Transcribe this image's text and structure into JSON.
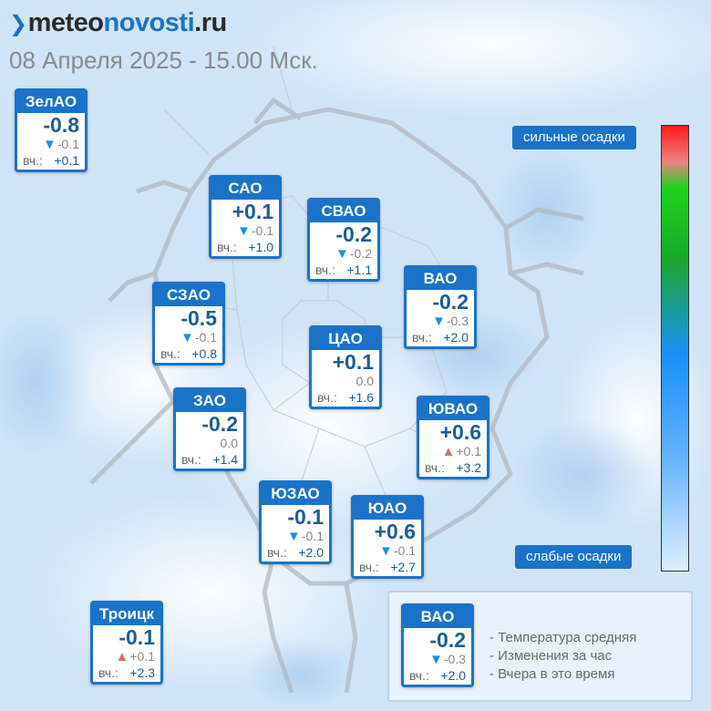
{
  "brand": {
    "meteo": "meteo",
    "novosti": "novosti",
    "ru": ".ru"
  },
  "date_line": "08 Апреля 2025 - 15.00 Мск.",
  "yest_label": "вч.:",
  "districts": [
    {
      "name": "ЗелАО",
      "temp": "-0.8",
      "change": "-0.1",
      "trend": "down",
      "yesterday": "+0.1"
    },
    {
      "name": "САО",
      "temp": "+0.1",
      "change": "-0.1",
      "trend": "down",
      "yesterday": "+1.0"
    },
    {
      "name": "СВАО",
      "temp": "-0.2",
      "change": "-0.2",
      "trend": "down",
      "yesterday": "+1.1"
    },
    {
      "name": "ВАО",
      "temp": "-0.2",
      "change": "-0.3",
      "trend": "down",
      "yesterday": "+2.0"
    },
    {
      "name": "СЗАО",
      "temp": "-0.5",
      "change": "-0.1",
      "trend": "down",
      "yesterday": "+0.8"
    },
    {
      "name": "ЦАО",
      "temp": "+0.1",
      "change": "0.0",
      "trend": "none",
      "yesterday": "+1.6"
    },
    {
      "name": "ЗАО",
      "temp": "-0.2",
      "change": "0.0",
      "trend": "none",
      "yesterday": "+1.4"
    },
    {
      "name": "ЮВАО",
      "temp": "+0.6",
      "change": "+0.1",
      "trend": "up",
      "yesterday": "+3.2"
    },
    {
      "name": "ЮЗАО",
      "temp": "-0.1",
      "change": "-0.1",
      "trend": "down",
      "yesterday": "+2.0"
    },
    {
      "name": "ЮАО",
      "temp": "+0.6",
      "change": "-0.1",
      "trend": "down",
      "yesterday": "+2.7"
    },
    {
      "name": "Троицк",
      "temp": "-0.1",
      "change": "+0.1",
      "trend": "up",
      "yesterday": "+2.3"
    }
  ],
  "precip_scale": {
    "top_label": "сильные осадки",
    "bottom_label": "слабые осадки"
  },
  "legend": {
    "sample": {
      "name": "ВАО",
      "temp": "-0.2",
      "change": "-0.3",
      "trend": "down",
      "yesterday": "+2.0"
    },
    "lines": [
      "- Температура средняя",
      "- Изменения за час",
      "- Вчера в это время"
    ]
  },
  "colors": {
    "accent": "#1a73c9",
    "temp_text": "#1a5c9a",
    "trend_down": "#1a8fe3",
    "trend_up": "#e26a6a"
  }
}
